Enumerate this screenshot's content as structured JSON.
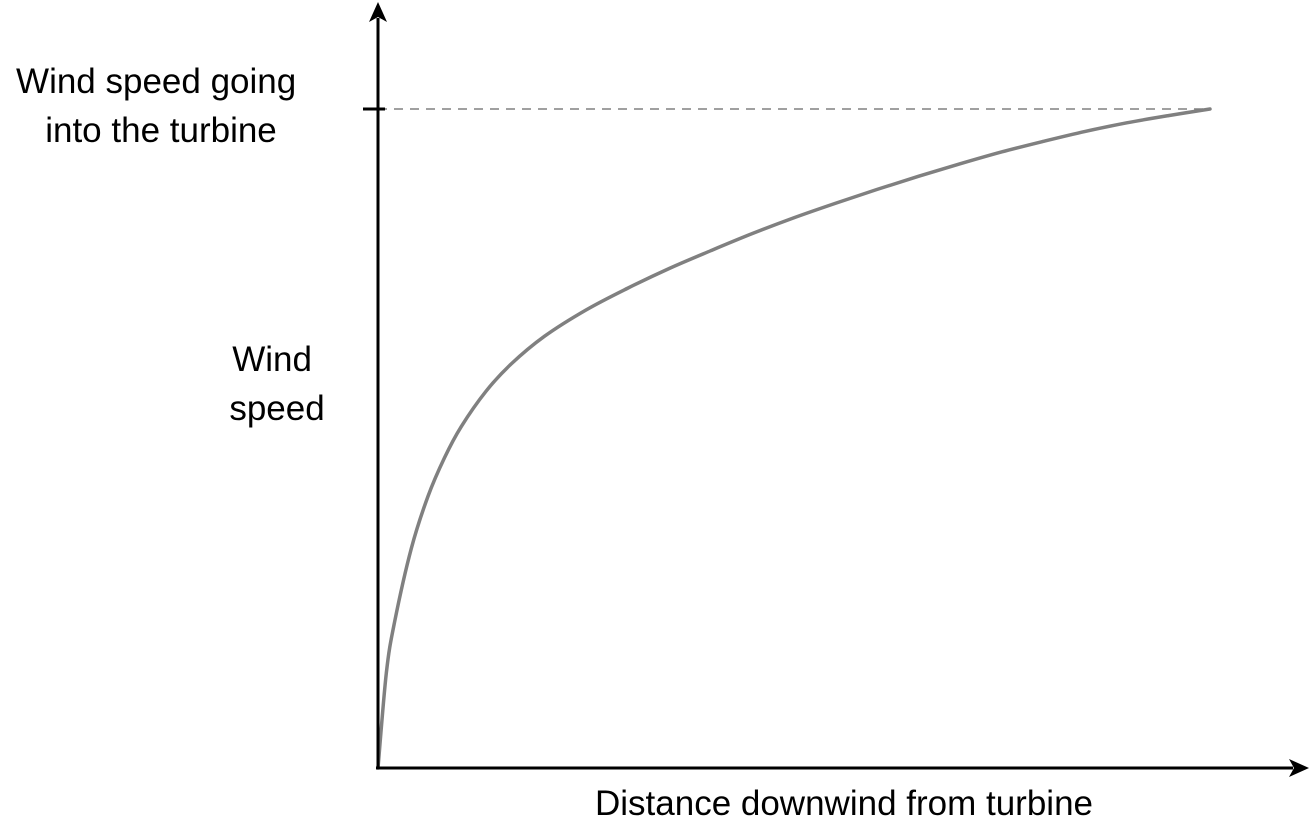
{
  "chart_data": {
    "type": "line",
    "xlabel": "Distance downwind from turbine",
    "ylabel": [
      "Wind",
      "speed"
    ],
    "reference_label": [
      "Wind speed going",
      "into the turbine"
    ],
    "reference_value": 1.0,
    "xlim": [
      0,
      1
    ],
    "ylim": [
      0,
      1
    ],
    "x": [
      0,
      0.01,
      0.02,
      0.04,
      0.06,
      0.08,
      0.1,
      0.13,
      0.16,
      0.2,
      0.25,
      0.3,
      0.35,
      0.4,
      0.45,
      0.5,
      0.55,
      0.6,
      0.65,
      0.7,
      0.75,
      0.8,
      0.85,
      0.9,
      0.95,
      1.0
    ],
    "y": [
      0,
      0.144,
      0.222,
      0.333,
      0.412,
      0.471,
      0.518,
      0.572,
      0.613,
      0.655,
      0.695,
      0.728,
      0.758,
      0.785,
      0.811,
      0.835,
      0.857,
      0.878,
      0.898,
      0.917,
      0.935,
      0.951,
      0.966,
      0.979,
      0.99,
      1.0
    ],
    "grid": false,
    "colors": {
      "axis": "#000000",
      "curve": "#808080",
      "reference_line": "#808080"
    }
  }
}
